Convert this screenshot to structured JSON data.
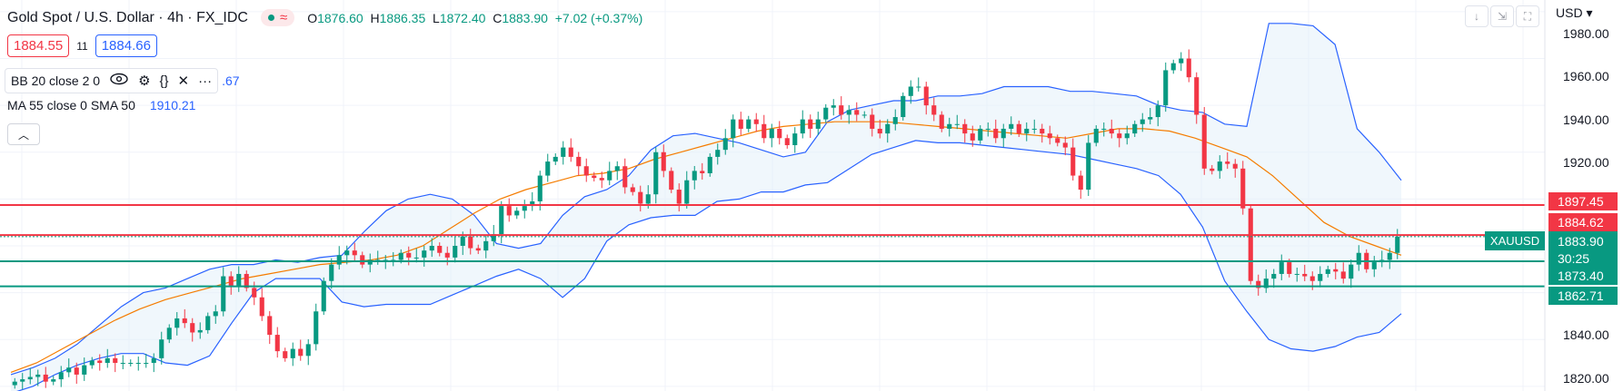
{
  "header": {
    "title": "Gold Spot / U.S. Dollar · 4h · FX_IDC",
    "status_icon": "wave-icon",
    "ohlc": {
      "o_label": "O",
      "o_value": "1876.60",
      "h_label": "H",
      "h_value": "1886.35",
      "l_label": "L",
      "l_value": "1872.40",
      "c_label": "C",
      "c_value": "1883.90",
      "change": "+7.02 (+0.37%)"
    }
  },
  "trade": {
    "sell_price": "1884.55",
    "spread": "11",
    "buy_price": "1884.66"
  },
  "indicators": {
    "bb_label": "BB 20 close 2 0",
    "bb_value": ".67",
    "ma_label": "MA 55 close 0 SMA 50",
    "ma_value": "1910.21"
  },
  "toolbar": {
    "currency": "USD"
  },
  "price_axis": [
    "1980.00",
    "1960.00",
    "1940.00",
    "1920.00",
    "1840.00",
    "1820.00"
  ],
  "price_tags": {
    "symbol": "XAUUSD",
    "current": "1883.90",
    "countdown": "30:25",
    "red_upper": "1897.45",
    "red_lower": "1884.62",
    "green_upper": "1873.40",
    "green_lower": "1862.71"
  },
  "colors": {
    "up": "#089981",
    "down": "#f23645",
    "bb": "#2962ff",
    "ma": "#f57c00",
    "bb_fill": "#e3f0fa"
  },
  "chart_data": {
    "type": "candlestick",
    "symbol": "XAUUSD",
    "ylim": [
      1818,
      1985
    ],
    "horizontal_levels": [
      {
        "value": 1897.45,
        "color": "red"
      },
      {
        "value": 1884.62,
        "color": "red"
      },
      {
        "value": 1873.4,
        "color": "green"
      },
      {
        "value": 1862.71,
        "color": "green"
      }
    ],
    "close": [
      1822,
      1823,
      1824,
      1825,
      1822,
      1823,
      1826,
      1828,
      1825,
      1829,
      1831,
      1830,
      1832,
      1830,
      1830,
      1830,
      1830,
      1830,
      1832,
      1840,
      1845,
      1849,
      1847,
      1843,
      1844,
      1850,
      1852,
      1867,
      1863,
      1868,
      1862,
      1858,
      1850,
      1842,
      1835,
      1832,
      1836,
      1833,
      1838,
      1852,
      1865,
      1872,
      1876,
      1878,
      1876,
      1872,
      1874,
      1874,
      1874,
      1874,
      1877,
      1875,
      1875,
      1878,
      1880,
      1877,
      1875,
      1880,
      1884,
      1879,
      1878,
      1882,
      1885,
      1897,
      1893,
      1895,
      1897,
      1899,
      1910,
      1916,
      1918,
      1922,
      1918,
      1914,
      1910,
      1909,
      1908,
      1912,
      1914,
      1905,
      1903,
      1898,
      1902,
      1920,
      1912,
      1904,
      1898,
      1908,
      1912,
      1911,
      1918,
      1921,
      1926,
      1934,
      1930,
      1934,
      1932,
      1926,
      1930,
      1926,
      1923,
      1928,
      1934,
      1930,
      1934,
      1939,
      1940,
      1936,
      1938,
      1936,
      1936,
      1930,
      1928,
      1932,
      1935,
      1944,
      1948,
      1948,
      1940,
      1936,
      1930,
      1932,
      1932,
      1928,
      1925,
      1930,
      1930,
      1926,
      1930,
      1932,
      1928,
      1930,
      1930,
      1928,
      1926,
      1924,
      1922,
      1910,
      1904,
      1924,
      1930,
      1930,
      1928,
      1926,
      1928,
      1932,
      1934,
      1935,
      1940,
      1955,
      1958,
      1960,
      1952,
      1936,
      1913,
      1912,
      1916,
      1915,
      1913,
      1896,
      1865,
      1862,
      1866,
      1868,
      1873,
      1868,
      1868,
      1867,
      1865,
      1868,
      1870,
      1869,
      1866,
      1872,
      1877,
      1870,
      1873,
      1874,
      1877,
      1883.9
    ],
    "bollinger_upper": [
      1825,
      1828,
      1832,
      1838,
      1846,
      1854,
      1860,
      1862,
      1866,
      1870,
      1872,
      1872,
      1874,
      1873,
      1875,
      1876,
      1886,
      1895,
      1900,
      1902,
      1900,
      1893,
      1881,
      1879,
      1881,
      1893,
      1901,
      1904,
      1910,
      1921,
      1927,
      1928,
      1926,
      1924,
      1921,
      1918,
      1920,
      1933,
      1938,
      1940,
      1942,
      1942,
      1944,
      1944,
      1945,
      1948,
      1948,
      1948,
      1946,
      1946,
      1945,
      1944,
      1940,
      1938,
      1937,
      1932,
      1931,
      1975,
      1975,
      1974,
      1966,
      1930,
      1920,
      1908
    ],
    "bollinger_lower": [
      1817,
      1820,
      1825,
      1829,
      1832,
      1834,
      1834,
      1830,
      1829,
      1833,
      1847,
      1860,
      1866,
      1866,
      1866,
      1856,
      1854,
      1855,
      1855,
      1855,
      1859,
      1863,
      1867,
      1870,
      1866,
      1858,
      1866,
      1882,
      1889,
      1892,
      1893,
      1893,
      1899,
      1900,
      1903,
      1903,
      1906,
      1907,
      1913,
      1919,
      1922,
      1925,
      1924,
      1924,
      1923,
      1922,
      1921,
      1920,
      1919,
      1917,
      1915,
      1913,
      1910,
      1902,
      1888,
      1865,
      1852,
      1840,
      1836,
      1835,
      1837,
      1841,
      1843,
      1851
    ],
    "moving_average": [
      1826,
      1830,
      1836,
      1842,
      1848,
      1853,
      1857,
      1860,
      1863,
      1866,
      1868,
      1870,
      1872,
      1873,
      1874,
      1876,
      1880,
      1887,
      1894,
      1900,
      1904,
      1907,
      1910,
      1911,
      1913,
      1917,
      1920,
      1923,
      1926,
      1929,
      1931,
      1932,
      1933,
      1933,
      1933,
      1932,
      1931,
      1930,
      1929,
      1928,
      1927,
      1926,
      1928,
      1930,
      1930,
      1929,
      1926,
      1922,
      1918,
      1910,
      1900,
      1890,
      1884,
      1880,
      1876
    ]
  }
}
